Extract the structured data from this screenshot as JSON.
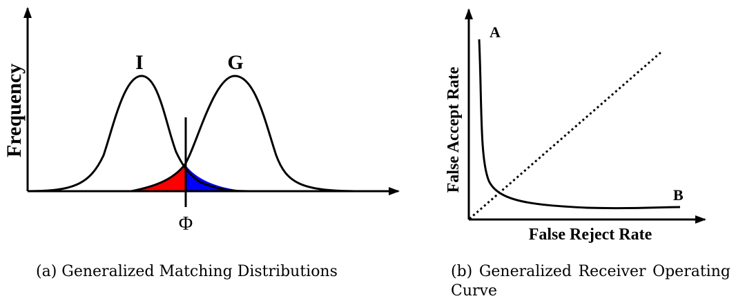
{
  "panel_a": {
    "ylabel": "Frequency",
    "impostor_label": "I",
    "genuine_label": "G",
    "threshold_label": "Φ",
    "colors": {
      "curve": "#000000",
      "false_accept_area": "#ff0000",
      "false_reject_area": "#0000ff"
    }
  },
  "panel_b": {
    "xlabel": "False Reject Rate",
    "ylabel": "False Accept Rate",
    "point_a_label": "A",
    "point_b_label": "B"
  },
  "captions": {
    "a": "(a) Generalized Matching Distributions",
    "b_words": [
      "(b)",
      "Generalized",
      "Receiver",
      "Operating"
    ],
    "b_line2": "Curve"
  }
}
